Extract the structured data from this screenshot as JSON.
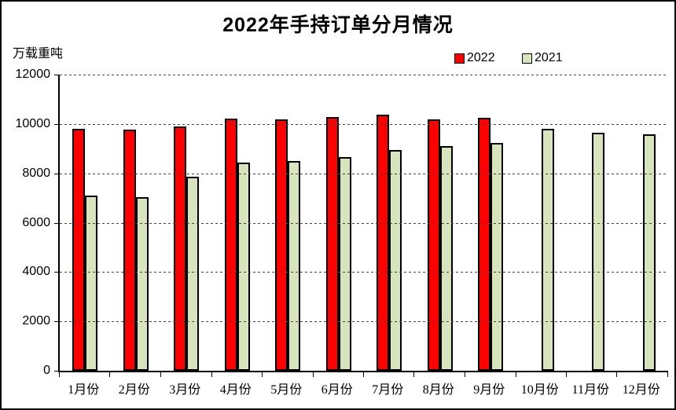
{
  "title": "2022年手持订单分月情况",
  "unit_label": "万载重吨",
  "legend": {
    "items": [
      {
        "label": "2022",
        "color": "#FF0000"
      },
      {
        "label": "2021",
        "color": "#D8E4BC"
      }
    ]
  },
  "colors": {
    "bar_2022": "#FF0000",
    "bar_2021": "#D8E4BC",
    "bar_border": "#000000",
    "axis": "#000000",
    "gridline": "#444444",
    "background": "#FFFFFF"
  },
  "chart_data": {
    "type": "bar",
    "title": "2022年手持订单分月情况",
    "ylabel": "万载重吨",
    "categories": [
      "1月份",
      "2月份",
      "3月份",
      "4月份",
      "5月份",
      "6月份",
      "7月份",
      "8月份",
      "9月份",
      "10月份",
      "11月份",
      "12月份"
    ],
    "series": [
      {
        "name": "2022",
        "color": "#FF0000",
        "values": [
          9820,
          9760,
          9900,
          10230,
          10200,
          10290,
          10370,
          10200,
          10260,
          null,
          null,
          null
        ]
      },
      {
        "name": "2021",
        "color": "#D8E4BC",
        "values": [
          7110,
          7050,
          7860,
          8440,
          8510,
          8670,
          8930,
          9110,
          9240,
          9790,
          9630,
          9580
        ]
      }
    ],
    "ylim": [
      0,
      12000
    ],
    "ytick_interval": 2000,
    "grid": "horizontal-dashed",
    "legend_position": "top-right"
  }
}
